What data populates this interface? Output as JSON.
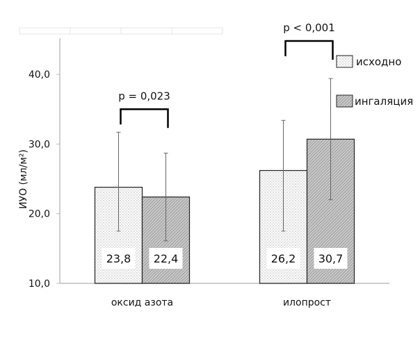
{
  "chart_data": {
    "type": "bar",
    "title": "",
    "ylabel": "ИУО (мл/м²)",
    "ylim": [
      10,
      43
    ],
    "yticks": [
      "10,0",
      "20,0",
      "30,0",
      "40,0"
    ],
    "ytick_values": [
      10,
      20,
      30,
      40
    ],
    "categories": [
      "оксид азота",
      "илопрост"
    ],
    "series": [
      {
        "name": "исходно",
        "values": [
          23.8,
          26.2
        ],
        "labels": [
          "23,8",
          "26,2"
        ],
        "err_low": [
          17.5,
          17.5
        ],
        "err_high": [
          31.7,
          33.4
        ],
        "color": "#f4f4f4"
      },
      {
        "name": "ингаляция",
        "values": [
          22.4,
          30.7
        ],
        "labels": [
          "22,4",
          "30,7"
        ],
        "err_low": [
          16.1,
          22.0
        ],
        "err_high": [
          28.7,
          39.4
        ],
        "color": "#b8b8b8"
      }
    ],
    "annotations": [
      {
        "text": "p =  0,023",
        "category": 0,
        "level": 35.0
      },
      {
        "text": "p < 0,001",
        "category": 1,
        "level": 44.8
      }
    ],
    "legend": "right",
    "grid": false
  }
}
